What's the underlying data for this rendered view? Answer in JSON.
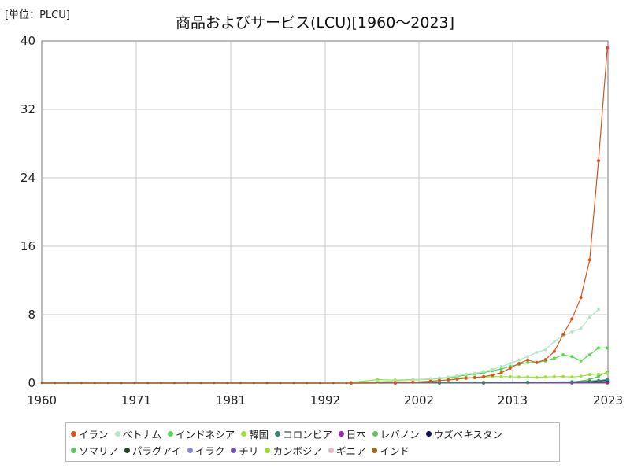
{
  "chart_data": {
    "type": "line",
    "title": "商品およびサービス(LCU)[1960～2023]",
    "unit_label": "[単位：PLCU]",
    "xlim": [
      1960,
      2023
    ],
    "ylim": [
      0,
      40
    ],
    "x_ticks": [
      "1960",
      "1971",
      "1981",
      "1992",
      "2002",
      "2013",
      "2023"
    ],
    "y_ticks": [
      "0",
      "8",
      "16",
      "24",
      "32",
      "40"
    ],
    "grid": true,
    "legend_position": "bottom",
    "series": [
      {
        "name": "イラン",
        "color": "#d9531e",
        "points": [
          [
            1960,
            0
          ],
          [
            1970,
            0
          ],
          [
            1980,
            0
          ],
          [
            1990,
            0
          ],
          [
            1995,
            0.02
          ],
          [
            2000,
            0.06
          ],
          [
            2002,
            0.1
          ],
          [
            2004,
            0.22
          ],
          [
            2005,
            0.3
          ],
          [
            2006,
            0.37
          ],
          [
            2007,
            0.47
          ],
          [
            2008,
            0.57
          ],
          [
            2009,
            0.65
          ],
          [
            2010,
            0.75
          ],
          [
            2011,
            0.95
          ],
          [
            2012,
            1.2
          ],
          [
            2013,
            1.75
          ],
          [
            2014,
            2.3
          ],
          [
            2015,
            2.7
          ],
          [
            2016,
            2.4
          ],
          [
            2017,
            2.75
          ],
          [
            2018,
            3.7
          ],
          [
            2019,
            5.7
          ],
          [
            2020,
            7.5
          ],
          [
            2021,
            10.0
          ],
          [
            2022,
            14.4
          ],
          [
            2023,
            26.0
          ],
          [
            2024,
            39.2
          ]
        ]
      },
      {
        "name": "ベトナム",
        "color": "#b3e6c7",
        "points": [
          [
            1960,
            0
          ],
          [
            1980,
            0
          ],
          [
            1990,
            0
          ],
          [
            1995,
            0.05
          ],
          [
            1998,
            0.15
          ],
          [
            2000,
            0.25
          ],
          [
            2002,
            0.35
          ],
          [
            2004,
            0.5
          ],
          [
            2005,
            0.6
          ],
          [
            2006,
            0.7
          ],
          [
            2007,
            0.85
          ],
          [
            2008,
            1.05
          ],
          [
            2009,
            1.15
          ],
          [
            2010,
            1.35
          ],
          [
            2011,
            1.6
          ],
          [
            2012,
            1.95
          ],
          [
            2013,
            2.3
          ],
          [
            2014,
            2.7
          ],
          [
            2015,
            3.1
          ],
          [
            2016,
            3.6
          ],
          [
            2017,
            3.9
          ],
          [
            2018,
            4.9
          ],
          [
            2019,
            5.5
          ],
          [
            2020,
            6.0
          ],
          [
            2021,
            6.4
          ],
          [
            2022,
            7.7
          ],
          [
            2023,
            8.6
          ]
        ]
      },
      {
        "name": "インドネシア",
        "color": "#55d855",
        "points": [
          [
            1960,
            0
          ],
          [
            1980,
            0
          ],
          [
            1990,
            0
          ],
          [
            1995,
            0.05
          ],
          [
            1998,
            0.15
          ],
          [
            2000,
            0.25
          ],
          [
            2002,
            0.35
          ],
          [
            2004,
            0.45
          ],
          [
            2005,
            0.55
          ],
          [
            2006,
            0.65
          ],
          [
            2007,
            0.75
          ],
          [
            2008,
            0.95
          ],
          [
            2009,
            1.05
          ],
          [
            2010,
            1.2
          ],
          [
            2011,
            1.45
          ],
          [
            2012,
            1.65
          ],
          [
            2013,
            1.95
          ],
          [
            2014,
            2.2
          ],
          [
            2015,
            2.4
          ],
          [
            2016,
            2.4
          ],
          [
            2017,
            2.6
          ],
          [
            2018,
            2.9
          ],
          [
            2019,
            3.3
          ],
          [
            2020,
            3.1
          ],
          [
            2021,
            2.6
          ],
          [
            2022,
            3.3
          ],
          [
            2023,
            4.1
          ],
          [
            2024,
            4.1
          ]
        ]
      },
      {
        "name": "韓国",
        "color": "#9be23a",
        "points": [
          [
            1960,
            0
          ],
          [
            1980,
            0
          ],
          [
            1990,
            0.02
          ],
          [
            1995,
            0.08
          ],
          [
            1998,
            0.4
          ],
          [
            2000,
            0.35
          ],
          [
            2002,
            0.4
          ],
          [
            2004,
            0.5
          ],
          [
            2005,
            0.55
          ],
          [
            2006,
            0.6
          ],
          [
            2007,
            0.6
          ],
          [
            2008,
            0.65
          ],
          [
            2009,
            0.62
          ],
          [
            2010,
            0.7
          ],
          [
            2011,
            0.75
          ],
          [
            2012,
            0.75
          ],
          [
            2013,
            0.75
          ],
          [
            2014,
            0.7
          ],
          [
            2015,
            0.72
          ],
          [
            2016,
            0.68
          ],
          [
            2017,
            0.72
          ],
          [
            2018,
            0.75
          ],
          [
            2019,
            0.75
          ],
          [
            2020,
            0.72
          ],
          [
            2021,
            0.8
          ],
          [
            2022,
            1.0
          ],
          [
            2023,
            1.05
          ],
          [
            2024,
            1.15
          ]
        ]
      },
      {
        "name": "コロンビア",
        "color": "#3c7f74",
        "points": [
          [
            1960,
            0
          ],
          [
            1990,
            0
          ],
          [
            2000,
            0.02
          ],
          [
            2005,
            0.04
          ],
          [
            2010,
            0.06
          ],
          [
            2015,
            0.1
          ],
          [
            2020,
            0.15
          ],
          [
            2022,
            0.22
          ],
          [
            2023,
            0.3
          ],
          [
            2024,
            0.4
          ]
        ]
      },
      {
        "name": "日本",
        "color": "#a020b0",
        "points": [
          [
            1960,
            0
          ],
          [
            1980,
            0.01
          ],
          [
            2000,
            0.02
          ],
          [
            2010,
            0.02
          ],
          [
            2020,
            0.03
          ],
          [
            2024,
            0.03
          ]
        ]
      },
      {
        "name": "レバノン",
        "color": "#5cc25c",
        "points": [
          [
            1960,
            0
          ],
          [
            1995,
            0
          ],
          [
            2005,
            0.02
          ],
          [
            2015,
            0.05
          ],
          [
            2020,
            0.1
          ],
          [
            2022,
            0.4
          ],
          [
            2023,
            0.8
          ],
          [
            2024,
            1.3
          ]
        ]
      },
      {
        "name": "ウズベキスタン",
        "color": "#101060",
        "points": [
          [
            1960,
            0
          ],
          [
            1995,
            0
          ],
          [
            2005,
            0.01
          ],
          [
            2015,
            0.05
          ],
          [
            2020,
            0.12
          ],
          [
            2022,
            0.2
          ],
          [
            2023,
            0.25
          ],
          [
            2024,
            0.3
          ]
        ]
      },
      {
        "name": "ソマリア",
        "color": "#5ec85e",
        "points": [
          [
            1960,
            0
          ],
          [
            1990,
            0.01
          ],
          [
            2000,
            0.03
          ],
          [
            2010,
            0.06
          ],
          [
            2020,
            0.1
          ],
          [
            2024,
            0.15
          ]
        ]
      },
      {
        "name": "パラグアイ",
        "color": "#224422",
        "points": [
          [
            1960,
            0
          ],
          [
            1990,
            0.01
          ],
          [
            2000,
            0.02
          ],
          [
            2010,
            0.05
          ],
          [
            2020,
            0.08
          ],
          [
            2024,
            0.12
          ]
        ]
      },
      {
        "name": "イラク",
        "color": "#8888d8",
        "points": [
          [
            1960,
            0
          ],
          [
            1990,
            0
          ],
          [
            2000,
            0.01
          ],
          [
            2010,
            0.03
          ],
          [
            2020,
            0.05
          ],
          [
            2024,
            0.06
          ]
        ]
      },
      {
        "name": "チリ",
        "color": "#7050c0",
        "points": [
          [
            1960,
            0
          ],
          [
            1990,
            0.01
          ],
          [
            2000,
            0.02
          ],
          [
            2010,
            0.03
          ],
          [
            2020,
            0.04
          ],
          [
            2024,
            0.05
          ]
        ]
      },
      {
        "name": "カンボジア",
        "color": "#9ad83a",
        "points": [
          [
            1960,
            0
          ],
          [
            1990,
            0
          ],
          [
            2000,
            0.02
          ],
          [
            2010,
            0.04
          ],
          [
            2020,
            0.06
          ],
          [
            2024,
            0.08
          ]
        ]
      },
      {
        "name": "ギニア",
        "color": "#e0b8c8",
        "points": [
          [
            1960,
            0
          ],
          [
            1990,
            0
          ],
          [
            2000,
            0.02
          ],
          [
            2010,
            0.04
          ],
          [
            2020,
            0.06
          ],
          [
            2024,
            0.08
          ]
        ]
      },
      {
        "name": "インド",
        "color": "#a86414",
        "points": [
          [
            1960,
            0
          ],
          [
            1990,
            0
          ],
          [
            2000,
            0.01
          ],
          [
            2010,
            0.02
          ],
          [
            2020,
            0.04
          ],
          [
            2024,
            0.06
          ]
        ]
      }
    ]
  }
}
